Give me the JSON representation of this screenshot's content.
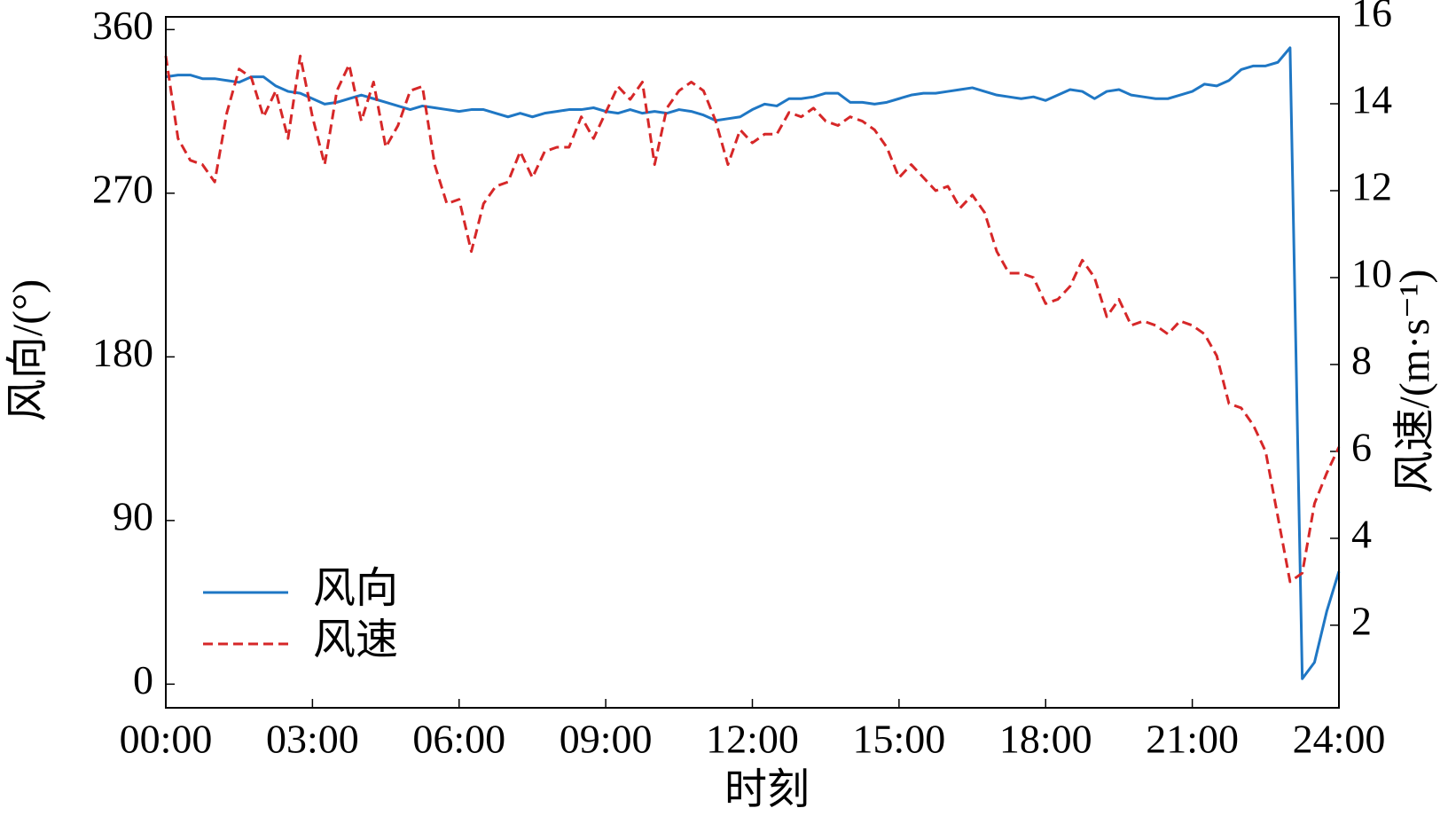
{
  "chart_data": {
    "type": "line",
    "xlabel": "时刻",
    "ylabel": "风向/(°)",
    "y2label": "风速/(m·s⁻¹)",
    "x": [
      0,
      0.25,
      0.5,
      0.75,
      1,
      1.25,
      1.5,
      1.75,
      2,
      2.25,
      2.5,
      2.75,
      3,
      3.25,
      3.5,
      3.75,
      4,
      4.25,
      4.5,
      4.75,
      5,
      5.25,
      5.5,
      5.75,
      6,
      6.25,
      6.5,
      6.75,
      7,
      7.25,
      7.5,
      7.75,
      8,
      8.25,
      8.5,
      8.75,
      9,
      9.25,
      9.5,
      9.75,
      10,
      10.25,
      10.5,
      10.75,
      11,
      11.25,
      11.5,
      11.75,
      12,
      12.25,
      12.5,
      12.75,
      13,
      13.25,
      13.5,
      13.75,
      14,
      14.25,
      14.5,
      14.75,
      15,
      15.25,
      15.5,
      15.75,
      16,
      16.25,
      16.5,
      16.75,
      17,
      17.25,
      17.5,
      17.75,
      18,
      18.25,
      18.5,
      18.75,
      19,
      19.25,
      19.5,
      19.75,
      20,
      20.25,
      20.5,
      20.75,
      21,
      21.25,
      21.5,
      21.75,
      22,
      22.25,
      22.5,
      22.75,
      23,
      23.25,
      23.5,
      23.75,
      24
    ],
    "series": [
      {
        "name": "风向",
        "color": "#1f77c4",
        "linestyle": "solid",
        "axis": "y",
        "values": [
          334,
          335,
          335,
          333,
          333,
          332,
          331,
          334,
          334,
          329,
          326,
          325,
          322,
          319,
          320,
          322,
          324,
          322,
          320,
          318,
          316,
          318,
          317,
          316,
          315,
          316,
          316,
          314,
          312,
          314,
          312,
          314,
          315,
          316,
          316,
          317,
          315,
          314,
          316,
          314,
          315,
          314,
          316,
          315,
          313,
          310,
          311,
          312,
          316,
          319,
          318,
          322,
          322,
          323,
          325,
          325,
          320,
          320,
          319,
          320,
          322,
          324,
          325,
          325,
          326,
          327,
          328,
          326,
          324,
          323,
          322,
          323,
          321,
          324,
          327,
          326,
          322,
          326,
          327,
          324,
          323,
          322,
          322,
          324,
          326,
          330,
          329,
          332,
          338,
          340,
          340,
          342,
          350,
          3,
          12,
          40,
          62
        ]
      },
      {
        "name": "风速",
        "color": "#d62728",
        "linestyle": "dashed",
        "axis": "y2",
        "values": [
          15.1,
          13.2,
          12.7,
          12.6,
          12.2,
          13.8,
          14.8,
          14.6,
          13.7,
          14.3,
          13.2,
          15.1,
          13.7,
          12.6,
          14.3,
          14.9,
          13.6,
          14.5,
          13.0,
          13.5,
          14.3,
          14.4,
          12.6,
          11.7,
          11.8,
          10.6,
          11.7,
          12.1,
          12.2,
          12.9,
          12.3,
          12.9,
          13.0,
          13.0,
          13.7,
          13.2,
          13.8,
          14.4,
          14.1,
          14.5,
          12.6,
          13.9,
          14.3,
          14.5,
          14.3,
          13.6,
          12.6,
          13.4,
          13.1,
          13.3,
          13.3,
          13.8,
          13.7,
          13.9,
          13.6,
          13.5,
          13.7,
          13.6,
          13.4,
          13.0,
          12.3,
          12.6,
          12.3,
          12.0,
          12.1,
          11.6,
          11.9,
          11.5,
          10.6,
          10.1,
          10.1,
          10.0,
          9.4,
          9.5,
          9.8,
          10.4,
          10.0,
          9.1,
          9.5,
          8.9,
          9.0,
          8.9,
          8.7,
          9.0,
          8.9,
          8.7,
          8.2,
          7.1,
          7.0,
          6.6,
          6.0,
          4.5,
          3.0,
          3.2,
          4.8,
          5.5,
          6.1
        ]
      }
    ],
    "xlim": [
      0,
      24
    ],
    "xticks": [
      {
        "value": 0,
        "label": "00:00"
      },
      {
        "value": 3,
        "label": "03:00"
      },
      {
        "value": 6,
        "label": "06:00"
      },
      {
        "value": 9,
        "label": "09:00"
      },
      {
        "value": 12,
        "label": "12:00"
      },
      {
        "value": 15,
        "label": "15:00"
      },
      {
        "value": 18,
        "label": "18:00"
      },
      {
        "value": 21,
        "label": "21:00"
      },
      {
        "value": 24,
        "label": "24:00"
      }
    ],
    "ylim": [
      -13,
      367
    ],
    "yticks": [
      0,
      90,
      180,
      270,
      360
    ],
    "y2lim": [
      0.1,
      16
    ],
    "y2ticks": [
      2,
      4,
      6,
      8,
      10,
      12,
      14,
      16
    ],
    "legend": "lower left"
  }
}
